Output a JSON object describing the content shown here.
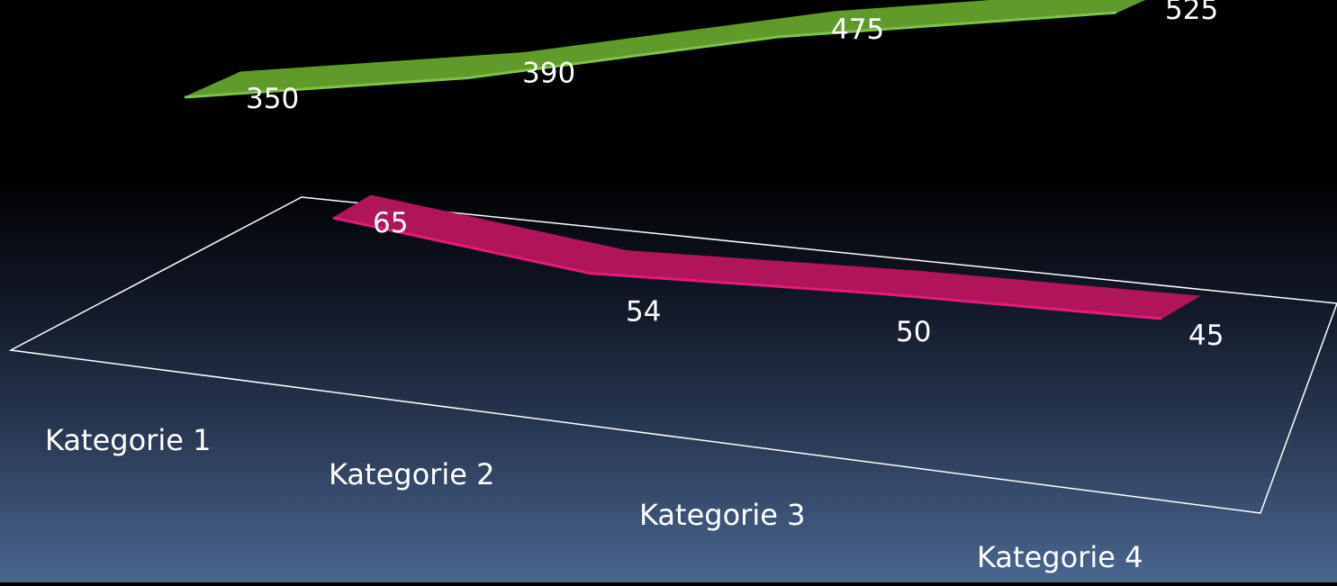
{
  "chart_data": {
    "type": "line",
    "categories": [
      "Kategorie 1",
      "Kategorie 2",
      "Kategorie 3",
      "Kategorie 4"
    ],
    "series": [
      {
        "values": [
          350,
          390,
          475,
          525
        ],
        "color": "#5f9a2a"
      },
      {
        "values": [
          65,
          54,
          50,
          45
        ],
        "color": "#b0155a"
      }
    ],
    "data_labels": true,
    "legend": "none",
    "grid": false,
    "style": "3d-ribbon"
  }
}
